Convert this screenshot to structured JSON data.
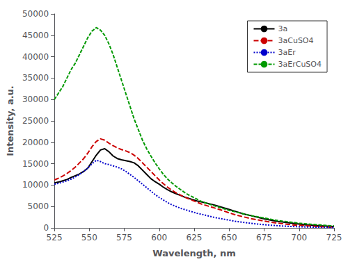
{
  "chart_data": {
    "type": "line",
    "xlabel": "Wavelength, nm",
    "ylabel": "Intensity, a.u.",
    "xlim": [
      525,
      725
    ],
    "ylim": [
      0,
      50000
    ],
    "xticks": [
      525,
      550,
      575,
      600,
      625,
      650,
      675,
      700,
      725
    ],
    "yticks": [
      0,
      5000,
      10000,
      15000,
      20000,
      25000,
      30000,
      35000,
      40000,
      45000,
      50000
    ],
    "grid": false,
    "legend": "upper right",
    "x": [
      525,
      528,
      531,
      534,
      537,
      540,
      543,
      546,
      549,
      552,
      555,
      558,
      561,
      564,
      567,
      570,
      573,
      576,
      579,
      582,
      585,
      588,
      591,
      594,
      597,
      600,
      603,
      606,
      609,
      612,
      615,
      618,
      621,
      624,
      627,
      630,
      635,
      640,
      645,
      650,
      655,
      660,
      665,
      670,
      675,
      680,
      685,
      690,
      695,
      700,
      705,
      710,
      715,
      720,
      725
    ],
    "series": [
      {
        "name": "3a",
        "color": "#000000",
        "line_style": "solid",
        "values": [
          10500,
          10700,
          11000,
          11300,
          11800,
          12200,
          12600,
          13200,
          14000,
          15500,
          17000,
          18200,
          18500,
          17800,
          16800,
          16200,
          15900,
          15700,
          15500,
          15200,
          14500,
          13500,
          12500,
          11500,
          10800,
          10200,
          9500,
          8900,
          8400,
          8000,
          7600,
          7200,
          6900,
          6600,
          6300,
          6100,
          5700,
          5300,
          4800,
          4300,
          3800,
          3300,
          2900,
          2500,
          2100,
          1800,
          1500,
          1300,
          1100,
          900,
          700,
          600,
          500,
          400,
          300
        ]
      },
      {
        "name": "3aCuSO4",
        "color": "#cc0000",
        "line_style": "dashed",
        "values": [
          11200,
          11600,
          12100,
          12700,
          13400,
          14200,
          15200,
          16200,
          17500,
          19000,
          20200,
          20800,
          20500,
          19800,
          19200,
          18700,
          18300,
          18000,
          17600,
          17000,
          16200,
          15200,
          14200,
          13200,
          12200,
          11200,
          10300,
          9500,
          8800,
          8200,
          7700,
          7200,
          6800,
          6400,
          6000,
          5600,
          5100,
          4600,
          4100,
          3500,
          3000,
          2600,
          2200,
          1900,
          1600,
          1300,
          1100,
          900,
          700,
          600,
          500,
          400,
          300,
          200,
          150
        ]
      },
      {
        "name": "3aEr",
        "color": "#0000cc",
        "line_style": "dotted",
        "values": [
          10200,
          10400,
          10700,
          11000,
          11400,
          11900,
          12500,
          13200,
          14000,
          15000,
          15800,
          15500,
          15000,
          14800,
          14500,
          14200,
          13800,
          13200,
          12500,
          11800,
          11000,
          10200,
          9400,
          8600,
          7800,
          7100,
          6500,
          5900,
          5400,
          5000,
          4600,
          4300,
          4000,
          3700,
          3400,
          3200,
          2800,
          2400,
          2100,
          1800,
          1500,
          1300,
          1100,
          900,
          750,
          620,
          500,
          400,
          320,
          260,
          210,
          170,
          140,
          110,
          90
        ]
      },
      {
        "name": "3aErCuSO4",
        "color": "#009900",
        "line_style": "dashed",
        "values": [
          30000,
          31500,
          33000,
          35000,
          37000,
          38500,
          40500,
          42500,
          44500,
          46000,
          46800,
          46200,
          45000,
          43000,
          40500,
          37500,
          34500,
          31500,
          28500,
          25500,
          23000,
          20500,
          18500,
          16800,
          15200,
          13800,
          12500,
          11400,
          10500,
          9700,
          9000,
          8300,
          7700,
          7200,
          6700,
          6200,
          5600,
          5100,
          4600,
          4100,
          3700,
          3300,
          2900,
          2600,
          2300,
          2000,
          1700,
          1500,
          1300,
          1100,
          950,
          800,
          680,
          560,
          460
        ]
      }
    ]
  }
}
